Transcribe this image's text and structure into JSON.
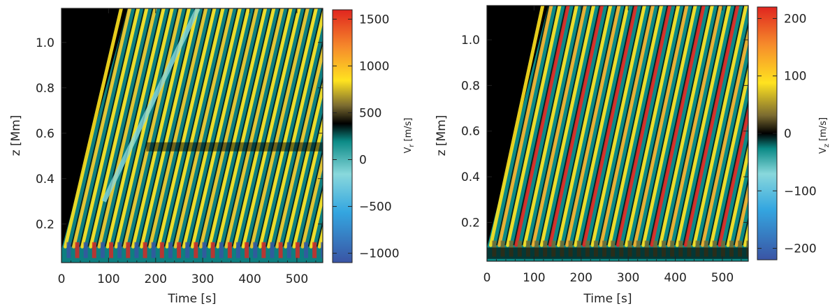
{
  "chart_data": [
    {
      "type": "heatmap",
      "title": "",
      "xlabel": "Time [s]",
      "ylabel": "z [Mm]",
      "xlim": [
        0,
        555
      ],
      "ylim": [
        0.03,
        1.15
      ],
      "x_ticks": [
        0,
        100,
        200,
        300,
        400,
        500
      ],
      "y_ticks": [
        0.2,
        0.4,
        0.6,
        0.8,
        1.0
      ],
      "colorbar": {
        "label": "V_r [m/s]",
        "label_main": "V",
        "label_sub": "r",
        "label_units": "[m/s]",
        "range": [
          -1100,
          1600
        ],
        "ticks": [
          -1000,
          -500,
          0,
          500,
          1000,
          1500
        ],
        "tick_labels": [
          "−1000",
          "−500",
          "0",
          "500",
          "1000",
          "1500"
        ]
      },
      "wave_front_time_at_top_s": 140,
      "oscillation_period_s": 18
    },
    {
      "type": "heatmap",
      "title": "",
      "xlabel": "Time [s]",
      "ylabel": "z [Mm]",
      "xlim": [
        0,
        555
      ],
      "ylim": [
        0.03,
        1.15
      ],
      "x_ticks": [
        0,
        100,
        200,
        300,
        400,
        500
      ],
      "y_ticks": [
        0.2,
        0.4,
        0.6,
        0.8,
        1.0
      ],
      "colorbar": {
        "label": "V_z [m/s]",
        "label_main": "V",
        "label_sub": "z",
        "label_units": "[m/s]",
        "range": [
          -220,
          220
        ],
        "ticks": [
          -200,
          -100,
          0,
          100,
          200
        ],
        "tick_labels": [
          "−200",
          "−100",
          "0",
          "100",
          "200"
        ]
      },
      "wave_front_time_at_top_s": 130,
      "oscillation_period_s": 18
    }
  ],
  "colormap": [
    "#3a54a4",
    "#34a6e0",
    "#89d8dc",
    "#0b8a86",
    "#000000",
    "#7a6a30",
    "#ffe320",
    "#f68c2b",
    "#e0251f"
  ]
}
